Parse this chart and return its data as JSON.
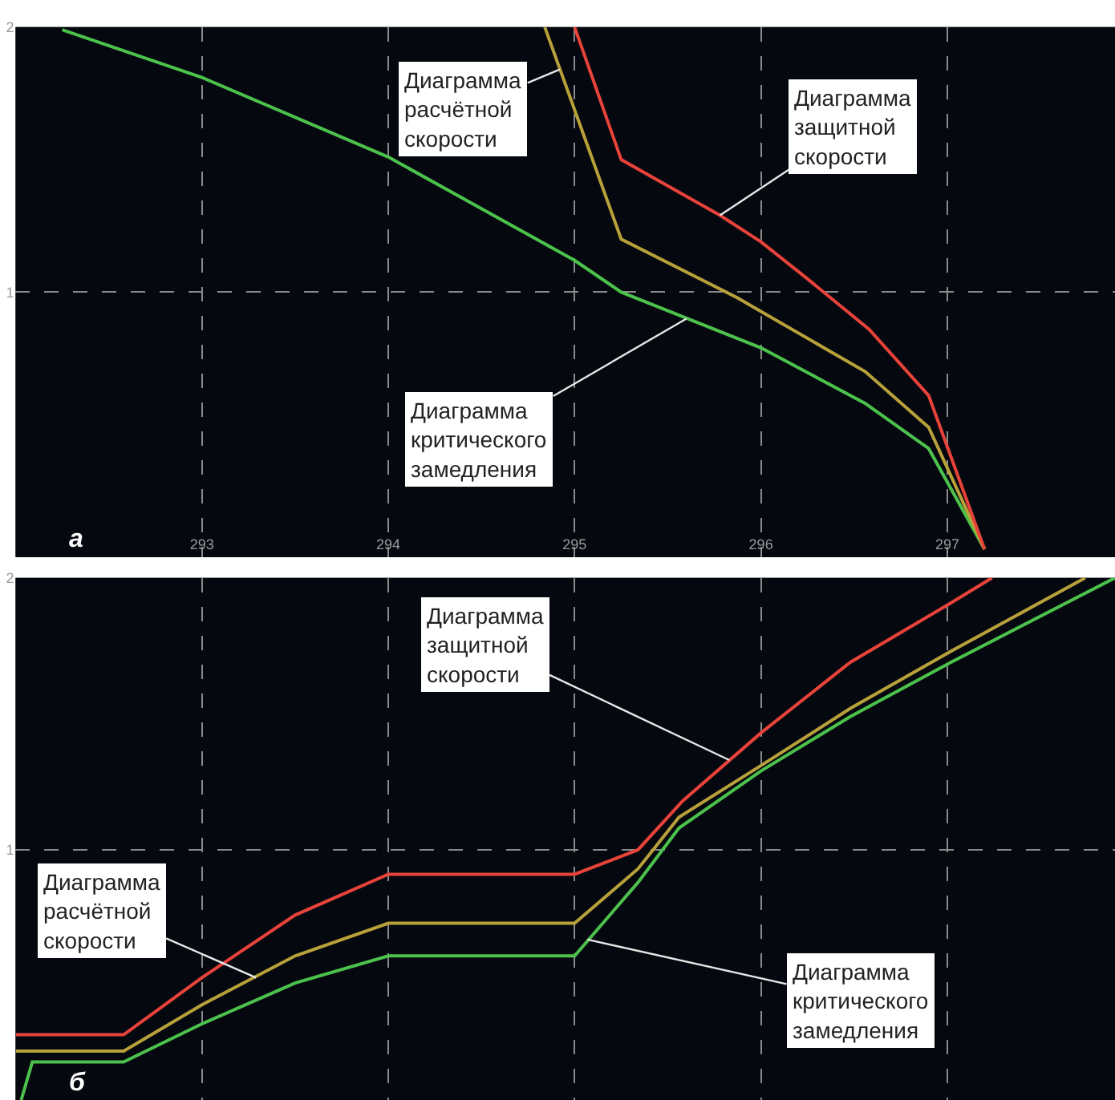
{
  "chart_data": [
    {
      "type": "line",
      "grid": true,
      "line_style": "solid",
      "marker": "none",
      "xlim": [
        292,
        297.9
      ],
      "ylim": [
        0,
        2
      ],
      "xticks": [
        293,
        294,
        295,
        296,
        297
      ],
      "yticks": [
        1,
        2
      ],
      "series": [
        {
          "color": "#4cc24c",
          "x": [
            292.25,
            293,
            294,
            295,
            295.25,
            296,
            296.56,
            296.9,
            297.2
          ],
          "values": [
            1.99,
            1.81,
            1.51,
            1.12,
            1.0,
            0.79,
            0.58,
            0.41,
            0.03
          ]
        },
        {
          "color": "#b8a13a",
          "x": [
            294.84,
            295.25,
            295.87,
            296.56,
            296.9,
            297.2
          ],
          "values": [
            2.0,
            1.2,
            0.98,
            0.7,
            0.49,
            0.03
          ]
        },
        {
          "color": "#e8433a",
          "x": [
            295.0,
            295.25,
            295.78,
            296.0,
            296.25,
            296.58,
            296.9,
            297.2
          ],
          "values": [
            2.0,
            1.5,
            1.29,
            1.19,
            1.05,
            0.86,
            0.61,
            0.03
          ]
        }
      ],
      "annotations": [
        {
          "text": "Диаграмма расчётной скорости",
          "x": 294.92,
          "y": 1.84
        },
        {
          "text": "Диаграмма защитной скорости",
          "x": 295.78,
          "y": 1.29
        },
        {
          "text": "Диаграмма критического замедления",
          "x": 295.6,
          "y": 0.9
        },
        "а"
      ]
    },
    {
      "type": "line",
      "grid": true,
      "line_style": "solid",
      "marker": "none",
      "tick_labels": "y",
      "xlim": [
        292,
        297.9
      ],
      "ylim": [
        0.08,
        2
      ],
      "xticks": [
        {
          "value": 293,
          "label": null
        },
        {
          "value": 294,
          "label": null
        },
        {
          "value": 295,
          "label": null
        },
        {
          "value": 296,
          "label": null
        },
        {
          "value": 297,
          "label": null
        }
      ],
      "yticks": [
        1,
        2
      ],
      "series": [
        {
          "color": "#4cc24c",
          "x": [
            292.03,
            292.09,
            292.58,
            293,
            293.5,
            294,
            295,
            295.34,
            295.56,
            296,
            296.48,
            297.02,
            297.9
          ],
          "values": [
            0.08,
            0.22,
            0.22,
            0.36,
            0.51,
            0.61,
            0.61,
            0.88,
            1.08,
            1.29,
            1.49,
            1.69,
            2.0
          ]
        },
        {
          "color": "#b8a13a",
          "x": [
            292,
            292.58,
            293,
            293.5,
            294,
            295,
            295.34,
            295.56,
            296,
            296.48,
            297.02,
            297.74
          ],
          "values": [
            0.26,
            0.26,
            0.43,
            0.61,
            0.73,
            0.73,
            0.93,
            1.12,
            1.31,
            1.52,
            1.73,
            2.0
          ]
        },
        {
          "color": "#e8433a",
          "x": [
            292,
            292.58,
            293,
            293.5,
            294,
            295,
            295.34,
            295.58,
            296,
            296.48,
            297,
            297.24
          ],
          "values": [
            0.32,
            0.32,
            0.53,
            0.76,
            0.91,
            0.91,
            1.0,
            1.18,
            1.43,
            1.69,
            1.9,
            2.0
          ]
        }
      ],
      "annotations": [
        {
          "text": "Диаграмма защитной скорости",
          "x": 295.83,
          "y": 1.33
        },
        {
          "text": "Диаграмма расчётной скорости",
          "x": 293.29,
          "y": 0.53
        },
        {
          "text": "Диаграмма критического замедления",
          "x": 295.07,
          "y": 0.67
        },
        "б"
      ]
    }
  ]
}
